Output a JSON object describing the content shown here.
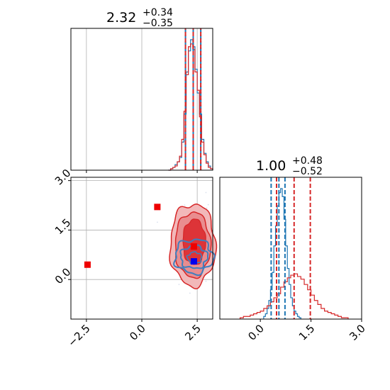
{
  "chart_data": [
    {
      "type": "histogram",
      "panel": "top-left",
      "title": {
        "value": "2.32",
        "plus": "+0.34",
        "minus": "−0.35"
      },
      "xlim": [
        -3.2,
        3.2
      ],
      "grid": true,
      "series": [
        {
          "color": "#1f77b4",
          "bins_x": [
            1.2,
            1.3,
            1.4,
            1.5,
            1.6,
            1.7,
            1.8,
            1.9,
            2.0,
            2.1,
            2.2,
            2.3,
            2.4,
            2.5,
            2.6,
            2.7,
            2.8,
            2.9,
            3.0,
            3.1,
            3.2
          ],
          "counts": [
            0,
            1,
            2,
            4,
            6,
            9,
            20,
            40,
            70,
            85,
            93,
            88,
            72,
            55,
            40,
            22,
            12,
            6,
            3,
            1
          ]
        },
        {
          "color": "#d62728",
          "bins_x": [
            1.2,
            1.3,
            1.4,
            1.5,
            1.6,
            1.7,
            1.8,
            1.9,
            2.0,
            2.1,
            2.2,
            2.3,
            2.4,
            2.5,
            2.6,
            2.7,
            2.8,
            2.9,
            3.0,
            3.1,
            3.2
          ],
          "counts": [
            0,
            1,
            2,
            3,
            6,
            10,
            22,
            42,
            68,
            88,
            90,
            86,
            70,
            57,
            38,
            20,
            11,
            5,
            2,
            1
          ]
        }
      ],
      "quantile_lines": {
        "blue": [
          1.97,
          2.32,
          2.66
        ],
        "red": [
          1.97,
          2.32,
          2.66
        ]
      }
    },
    {
      "type": "histogram",
      "panel": "bottom-right",
      "title": {
        "value": "1.00",
        "plus": "+0.48",
        "minus": "−0.52"
      },
      "xlim": [
        -1.2,
        3.0
      ],
      "xticks": [
        "0.0",
        "1.5",
        "3.0"
      ],
      "grid": false,
      "series": [
        {
          "color": "#1f77b4",
          "bins_x": [
            0.1,
            0.15,
            0.2,
            0.25,
            0.3,
            0.35,
            0.4,
            0.45,
            0.5,
            0.55,
            0.6,
            0.65,
            0.7,
            0.75,
            0.8,
            0.85,
            0.9,
            0.95,
            1.0,
            1.05,
            1.1,
            1.15,
            1.2
          ],
          "counts": [
            2,
            4,
            8,
            14,
            22,
            35,
            55,
            70,
            85,
            95,
            98,
            92,
            75,
            55,
            38,
            26,
            16,
            10,
            6,
            4,
            2,
            1
          ]
        },
        {
          "color": "#d62728",
          "bins_x": [
            -0.6,
            -0.5,
            -0.4,
            -0.3,
            -0.2,
            -0.1,
            0.0,
            0.1,
            0.2,
            0.3,
            0.4,
            0.5,
            0.6,
            0.7,
            0.8,
            0.9,
            1.0,
            1.1,
            1.2,
            1.3,
            1.4,
            1.5,
            1.6,
            1.7,
            1.8,
            1.9,
            2.0,
            2.1,
            2.2,
            2.3,
            2.4,
            2.5,
            2.6
          ],
          "counts": [
            1,
            2,
            2,
            3,
            4,
            5,
            6,
            8,
            10,
            13,
            16,
            19,
            24,
            28,
            31,
            33,
            34,
            32,
            30,
            26,
            22,
            18,
            14,
            11,
            8,
            6,
            5,
            4,
            3,
            2,
            1,
            1
          ]
        }
      ],
      "quantile_lines": {
        "blue": [
          0.32,
          0.55,
          0.73
        ],
        "red": [
          0.48,
          1.0,
          1.48
        ]
      }
    },
    {
      "type": "scatter_contour",
      "panel": "bottom-left",
      "xlim": [
        -3.2,
        3.2
      ],
      "ylim": [
        -1.2,
        3.1
      ],
      "xticks": [
        "−2.5",
        "0.0",
        "2.5"
      ],
      "yticks": [
        "3.0",
        "1.5",
        "0.0"
      ],
      "grid": true,
      "markers": [
        {
          "x": -2.45,
          "y": 0.45,
          "color": "#ee0000"
        },
        {
          "x": 0.7,
          "y": 2.2,
          "color": "#ee0000"
        },
        {
          "x": 2.35,
          "y": 1.0,
          "color": "#ee0000"
        },
        {
          "x": 2.35,
          "y": 0.55,
          "color": "#0000ee"
        }
      ],
      "contours": {
        "red_center": [
          2.3,
          1.05
        ],
        "blue_center": [
          2.35,
          0.7
        ]
      }
    }
  ],
  "colors": {
    "blue": "#1f77b4",
    "red": "#d62728"
  }
}
